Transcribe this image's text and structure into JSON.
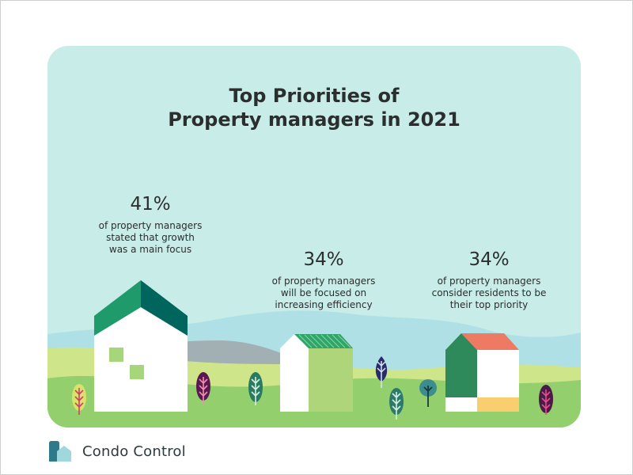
{
  "title": {
    "line1": "Top Priorities of",
    "line2": "Property managers in 2021"
  },
  "stats": [
    {
      "value": "41%",
      "line1": "of property managers",
      "line2": "stated that growth",
      "line3": "was a main focus"
    },
    {
      "value": "34%",
      "line1": "of property managers",
      "line2": "will be focused on",
      "line3": "increasing efficiency"
    },
    {
      "value": "34%",
      "line1": "of property managers",
      "line2": "consider residents to be",
      "line3": "their top priority"
    }
  ],
  "brand": {
    "name": "Condo Control"
  },
  "colors": {
    "background": "#c8ece7",
    "mountain_far": "#aee0e6",
    "mountain_gray": "#a2b0b4",
    "hill_light": "#cfe58a",
    "ground": "#94cf6e",
    "green_dark": "#2e9a6a",
    "teal_dark": "#00665d",
    "roof_orange": "#ee7a63",
    "yellow": "#f8ce6e",
    "text": "#2a2e2f"
  }
}
